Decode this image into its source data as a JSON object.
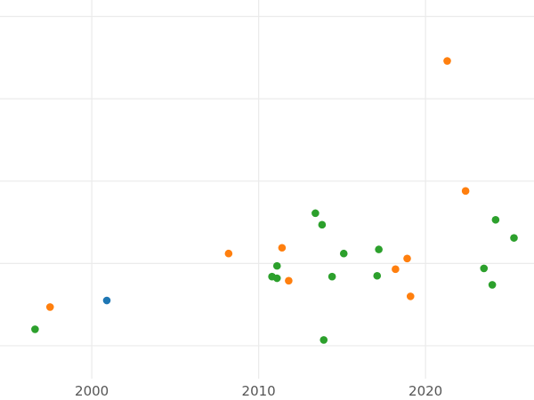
{
  "chart_data": {
    "type": "scatter",
    "title": "",
    "xlabel": "",
    "ylabel": "",
    "xlim": [
      1994.5,
      2026.5
    ],
    "ylim": [
      -0.4,
      4.2
    ],
    "x_ticks": [
      2000,
      2010,
      2020
    ],
    "x_tick_labels": [
      "2000",
      "2010",
      "2020"
    ],
    "y_ticks": [
      0,
      1,
      2,
      3,
      4
    ],
    "y_tick_labels": [],
    "grid": true,
    "legend": "none",
    "series": [
      {
        "color": "#1f77b4",
        "points": [
          {
            "x": 2000.9,
            "y": 0.55
          }
        ]
      },
      {
        "color": "#ff7f0e",
        "points": [
          {
            "x": 1997.5,
            "y": 0.47
          },
          {
            "x": 2008.2,
            "y": 1.12
          },
          {
            "x": 2011.4,
            "y": 1.19
          },
          {
            "x": 2011.8,
            "y": 0.79
          },
          {
            "x": 2018.2,
            "y": 0.93
          },
          {
            "x": 2018.9,
            "y": 1.06
          },
          {
            "x": 2019.1,
            "y": 0.6
          },
          {
            "x": 2021.3,
            "y": 3.46
          },
          {
            "x": 2022.4,
            "y": 1.88
          }
        ]
      },
      {
        "color": "#2ca02c",
        "points": [
          {
            "x": 1996.6,
            "y": 0.2
          },
          {
            "x": 2010.8,
            "y": 0.84
          },
          {
            "x": 2011.1,
            "y": 0.82
          },
          {
            "x": 2011.1,
            "y": 0.97
          },
          {
            "x": 2013.4,
            "y": 1.61
          },
          {
            "x": 2013.8,
            "y": 1.47
          },
          {
            "x": 2013.9,
            "y": 0.07
          },
          {
            "x": 2014.4,
            "y": 0.84
          },
          {
            "x": 2015.1,
            "y": 1.12
          },
          {
            "x": 2017.1,
            "y": 0.85
          },
          {
            "x": 2017.2,
            "y": 1.17
          },
          {
            "x": 2023.5,
            "y": 0.94
          },
          {
            "x": 2024.0,
            "y": 0.74
          },
          {
            "x": 2024.2,
            "y": 1.53
          },
          {
            "x": 2025.3,
            "y": 1.31
          }
        ]
      }
    ]
  }
}
